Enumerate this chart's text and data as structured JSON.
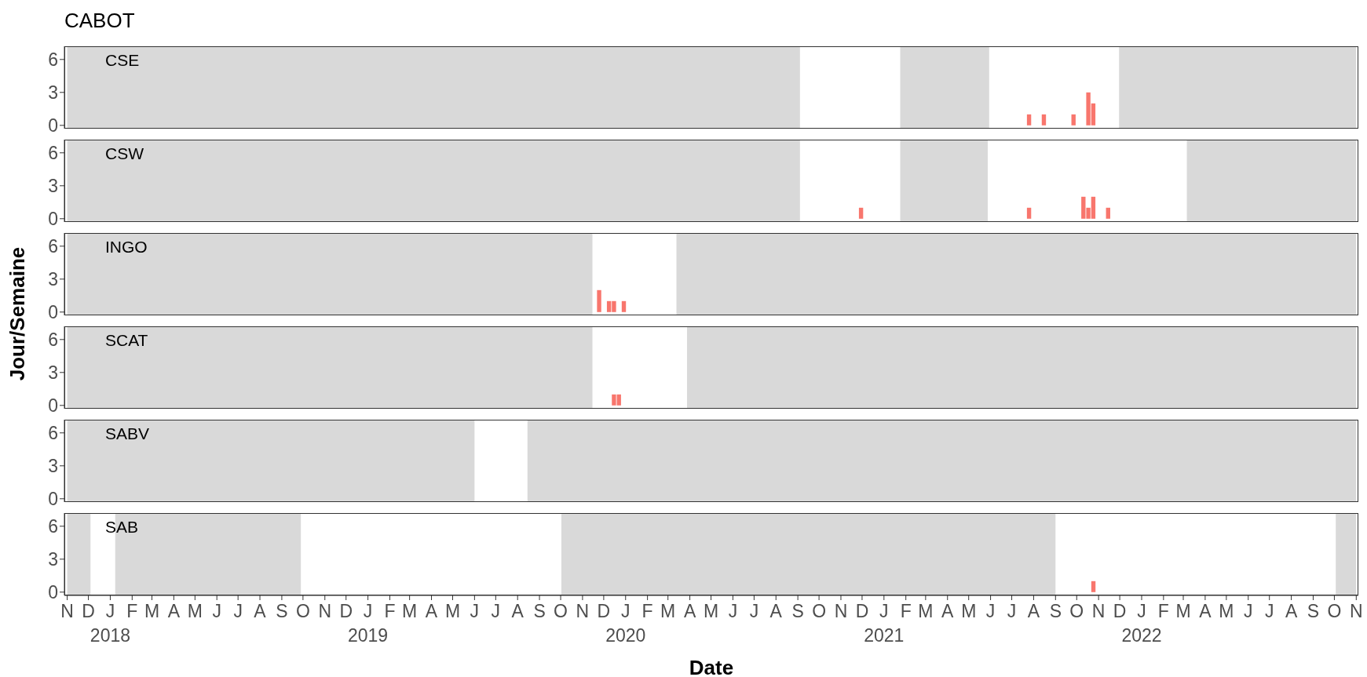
{
  "chart_data": [
    {
      "type": "bar",
      "title": "CABOT",
      "annotations": [
        "CSE"
      ],
      "x": [
        "2021-07-26",
        "2021-08-16",
        "2021-09-27",
        "2021-10-18",
        "2021-10-25"
      ],
      "values": [
        1,
        1,
        1,
        3,
        2
      ],
      "color": "#f8766d",
      "xlim": [
        "2017-10-28",
        "2022-11-04"
      ],
      "ylim": [
        -0.3,
        7.2
      ],
      "yticks": [
        0,
        3,
        6
      ],
      "tick_labels": "y",
      "bands": [
        {
          "axis": "x",
          "from": "2017-11-01",
          "to": "2020-09-04",
          "color": "#d9d9d9"
        },
        {
          "axis": "x",
          "from": "2021-01-24",
          "to": "2021-05-30",
          "color": "#d9d9d9"
        },
        {
          "axis": "x",
          "from": "2021-11-30",
          "to": "2022-11-01",
          "color": "#d9d9d9"
        }
      ]
    },
    {
      "type": "bar",
      "annotations": [
        "CSW"
      ],
      "x": [
        "2020-11-30",
        "2021-07-26",
        "2021-10-11",
        "2021-10-18",
        "2021-10-25",
        "2021-11-15"
      ],
      "values": [
        1,
        1,
        2,
        1,
        2,
        1
      ],
      "color": "#f8766d",
      "xlim": [
        "2017-10-28",
        "2022-11-04"
      ],
      "ylim": [
        -0.3,
        7.2
      ],
      "yticks": [
        0,
        3,
        6
      ],
      "tick_labels": "y",
      "bands": [
        {
          "axis": "x",
          "from": "2017-11-01",
          "to": "2020-09-04",
          "color": "#d9d9d9"
        },
        {
          "axis": "x",
          "from": "2021-01-24",
          "to": "2021-05-28",
          "color": "#d9d9d9"
        },
        {
          "axis": "x",
          "from": "2022-03-06",
          "to": "2022-11-01",
          "color": "#d9d9d9"
        }
      ]
    },
    {
      "type": "bar",
      "annotations": [
        "INGO"
      ],
      "ylabel": "Jour/Semaine",
      "x": [
        "2019-11-25",
        "2019-12-09",
        "2019-12-16",
        "2019-12-30"
      ],
      "values": [
        2,
        1,
        1,
        1
      ],
      "color": "#f8766d",
      "xlim": [
        "2017-10-28",
        "2022-11-04"
      ],
      "ylim": [
        -0.3,
        7.2
      ],
      "yticks": [
        0,
        3,
        6
      ],
      "tick_labels": "y",
      "bands": [
        {
          "axis": "x",
          "from": "2017-11-01",
          "to": "2019-11-15",
          "color": "#d9d9d9"
        },
        {
          "axis": "x",
          "from": "2020-03-13",
          "to": "2022-11-01",
          "color": "#d9d9d9"
        }
      ]
    },
    {
      "type": "bar",
      "annotations": [
        "SCAT"
      ],
      "x": [
        "2019-12-16",
        "2019-12-23"
      ],
      "values": [
        1,
        1
      ],
      "color": "#f8766d",
      "xlim": [
        "2017-10-28",
        "2022-11-04"
      ],
      "ylim": [
        -0.3,
        7.2
      ],
      "yticks": [
        0,
        3,
        6
      ],
      "tick_labels": "y",
      "bands": [
        {
          "axis": "x",
          "from": "2017-11-01",
          "to": "2019-11-15",
          "color": "#d9d9d9"
        },
        {
          "axis": "x",
          "from": "2020-03-28",
          "to": "2022-11-01",
          "color": "#d9d9d9"
        }
      ]
    },
    {
      "type": "bar",
      "annotations": [
        "SABV"
      ],
      "color": "#f8766d",
      "xlim": [
        "2017-10-28",
        "2022-11-04"
      ],
      "ylim": [
        -0.3,
        7.2
      ],
      "yticks": [
        0,
        3,
        6
      ],
      "tick_labels": "y",
      "bands": [
        {
          "axis": "x",
          "from": "2017-11-01",
          "to": "2019-06-01",
          "color": "#d9d9d9"
        },
        {
          "axis": "x",
          "from": "2019-08-15",
          "to": "2022-11-01",
          "color": "#d9d9d9"
        }
      ]
    },
    {
      "type": "bar",
      "annotations": [
        "SAB"
      ],
      "xlabel": "Date",
      "x": [
        "2021-10-25"
      ],
      "values": [
        1
      ],
      "color": "#f8766d",
      "xlim": [
        "2017-10-28",
        "2022-11-04"
      ],
      "ylim": [
        -0.3,
        7.2
      ],
      "yticks": [
        0,
        3,
        6
      ],
      "xticks": [
        {
          "value": "2017-11-01",
          "label": "N"
        },
        {
          "value": "2017-12-01",
          "label": "D"
        },
        {
          "value": "2018-01-01",
          "label": "J\n2018"
        },
        {
          "value": "2018-02-01",
          "label": "F"
        },
        {
          "value": "2018-03-01",
          "label": "M"
        },
        {
          "value": "2018-04-01",
          "label": "A"
        },
        {
          "value": "2018-05-01",
          "label": "M"
        },
        {
          "value": "2018-06-01",
          "label": "J"
        },
        {
          "value": "2018-07-01",
          "label": "J"
        },
        {
          "value": "2018-08-01",
          "label": "A"
        },
        {
          "value": "2018-09-01",
          "label": "S"
        },
        {
          "value": "2018-10-01",
          "label": "O"
        },
        {
          "value": "2018-11-01",
          "label": "N"
        },
        {
          "value": "2018-12-01",
          "label": "D"
        },
        {
          "value": "2019-01-01",
          "label": "J\n2019"
        },
        {
          "value": "2019-02-01",
          "label": "F"
        },
        {
          "value": "2019-03-01",
          "label": "M"
        },
        {
          "value": "2019-04-01",
          "label": "A"
        },
        {
          "value": "2019-05-01",
          "label": "M"
        },
        {
          "value": "2019-06-01",
          "label": "J"
        },
        {
          "value": "2019-07-01",
          "label": "J"
        },
        {
          "value": "2019-08-01",
          "label": "A"
        },
        {
          "value": "2019-09-01",
          "label": "S"
        },
        {
          "value": "2019-10-01",
          "label": "O"
        },
        {
          "value": "2019-11-01",
          "label": "N"
        },
        {
          "value": "2019-12-01",
          "label": "D"
        },
        {
          "value": "2020-01-01",
          "label": "J\n2020"
        },
        {
          "value": "2020-02-01",
          "label": "F"
        },
        {
          "value": "2020-03-01",
          "label": "M"
        },
        {
          "value": "2020-04-01",
          "label": "A"
        },
        {
          "value": "2020-05-01",
          "label": "M"
        },
        {
          "value": "2020-06-01",
          "label": "J"
        },
        {
          "value": "2020-07-01",
          "label": "J"
        },
        {
          "value": "2020-08-01",
          "label": "A"
        },
        {
          "value": "2020-09-01",
          "label": "S"
        },
        {
          "value": "2020-10-01",
          "label": "O"
        },
        {
          "value": "2020-11-01",
          "label": "N"
        },
        {
          "value": "2020-12-01",
          "label": "D"
        },
        {
          "value": "2021-01-01",
          "label": "J\n2021"
        },
        {
          "value": "2021-02-01",
          "label": "F"
        },
        {
          "value": "2021-03-01",
          "label": "M"
        },
        {
          "value": "2021-04-01",
          "label": "A"
        },
        {
          "value": "2021-05-01",
          "label": "M"
        },
        {
          "value": "2021-06-01",
          "label": "J"
        },
        {
          "value": "2021-07-01",
          "label": "J"
        },
        {
          "value": "2021-08-01",
          "label": "A"
        },
        {
          "value": "2021-09-01",
          "label": "S"
        },
        {
          "value": "2021-10-01",
          "label": "O"
        },
        {
          "value": "2021-11-01",
          "label": "N"
        },
        {
          "value": "2021-12-01",
          "label": "D"
        },
        {
          "value": "2022-01-01",
          "label": "J\n2022"
        },
        {
          "value": "2022-02-01",
          "label": "F"
        },
        {
          "value": "2022-03-01",
          "label": "M"
        },
        {
          "value": "2022-04-01",
          "label": "A"
        },
        {
          "value": "2022-05-01",
          "label": "M"
        },
        {
          "value": "2022-06-01",
          "label": "J"
        },
        {
          "value": "2022-07-01",
          "label": "J"
        },
        {
          "value": "2022-08-01",
          "label": "A"
        },
        {
          "value": "2022-09-01",
          "label": "S"
        },
        {
          "value": "2022-10-01",
          "label": "O"
        },
        {
          "value": "2022-11-01",
          "label": "N"
        }
      ],
      "bands": [
        {
          "axis": "x",
          "from": "2017-11-01",
          "to": "2017-12-04",
          "color": "#d9d9d9"
        },
        {
          "axis": "x",
          "from": "2018-01-08",
          "to": "2018-09-28",
          "color": "#d9d9d9"
        },
        {
          "axis": "x",
          "from": "2019-10-02",
          "to": "2021-09-01",
          "color": "#d9d9d9"
        },
        {
          "axis": "x",
          "from": "2022-10-03",
          "to": "2022-11-01",
          "color": "#d9d9d9"
        }
      ]
    }
  ]
}
